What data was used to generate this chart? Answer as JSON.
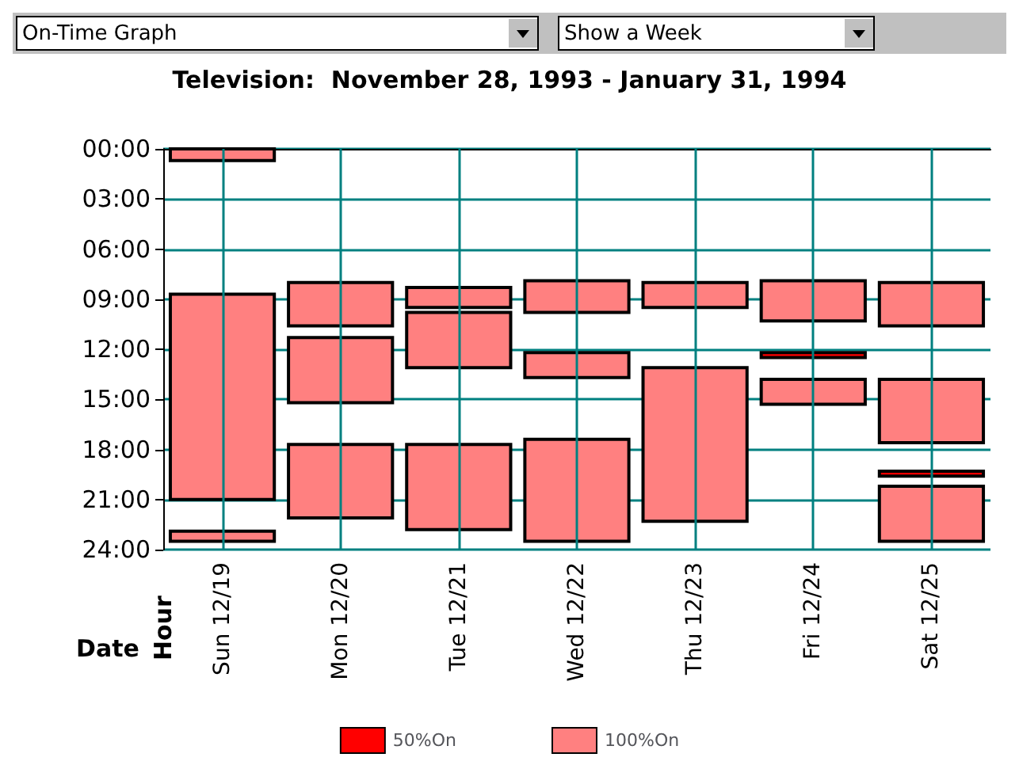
{
  "chart_data": {
    "type": "bar",
    "title": "Television:  November 28, 1993 - January 31, 1994",
    "xlabel": "Date",
    "ylabel": "Hour",
    "annotations": [
      "On-Time Graph",
      "Show a Week"
    ],
    "categories": [
      "Sun 12/19",
      "Mon 12/20",
      "Tue 12/21",
      "Wed 12/22",
      "Thu 12/23",
      "Fri 12/24",
      "Sat 12/25"
    ],
    "series": [
      {
        "name": "50%On",
        "color": "#ff0000",
        "x": [
          "Fri 12/24",
          "Sat 12/25"
        ],
        "base": [
          12.2,
          19.3
        ],
        "values": [
          0.3,
          0.3
        ]
      },
      {
        "name": "100%On",
        "color": "#ff8080",
        "x": [
          "Sun 12/19",
          "Sun 12/19",
          "Sun 12/19",
          "Mon 12/20",
          "Mon 12/20",
          "Mon 12/20",
          "Tue 12/21",
          "Tue 12/21",
          "Tue 12/21",
          "Wed 12/22",
          "Wed 12/22",
          "Wed 12/22",
          "Thu 12/23",
          "Thu 12/23",
          "Fri 12/24",
          "Fri 12/24",
          "Sat 12/25",
          "Sat 12/25",
          "Sat 12/25"
        ],
        "base": [
          0,
          8.7,
          22.9,
          8,
          11.3,
          17.7,
          8.3,
          9.8,
          17.7,
          7.9,
          12.2,
          17.4,
          8,
          13.1,
          7.9,
          13.8,
          8,
          13.8,
          20.2
        ],
        "values": [
          0.7,
          12.3,
          0.6,
          2.6,
          3.9,
          4.4,
          1.2,
          3.3,
          5.1,
          1.9,
          1.5,
          6.1,
          1.5,
          9.2,
          2.4,
          1.5,
          2.6,
          3.8,
          3.3
        ]
      }
    ],
    "ylim": [
      24,
      0
    ],
    "yticks": [
      {
        "value": 0,
        "label": "00:00"
      },
      {
        "value": 3,
        "label": "03:00"
      },
      {
        "value": 6,
        "label": "06:00"
      },
      {
        "value": 9,
        "label": "09:00"
      },
      {
        "value": 12,
        "label": "12:00"
      },
      {
        "value": 15,
        "label": "15:00"
      },
      {
        "value": 18,
        "label": "18:00"
      },
      {
        "value": 21,
        "label": "21:00"
      },
      {
        "value": 24,
        "label": "24:00"
      }
    ],
    "grid": true,
    "legend": "bottom"
  }
}
